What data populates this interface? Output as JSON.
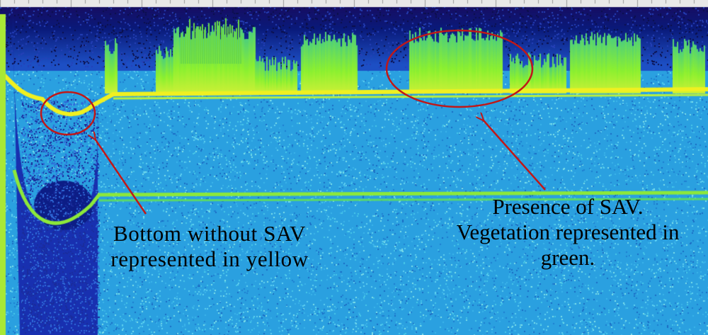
{
  "figure": {
    "type": "echogram",
    "colors": {
      "water_column": "#0a1a7a",
      "background": "#2aa0e0",
      "bottom_without_sav": "#f0f020",
      "vegetation": "#8cf030",
      "annotation_ellipse": "#c01818",
      "annotation_arrow": "#c01818",
      "text": "#000000"
    }
  },
  "annotations": {
    "bottom_without_sav": {
      "line1": "Bottom without SAV",
      "line2": "represented in yellow"
    },
    "presence_of_sav": {
      "line1": "Presence of SAV.",
      "line2": "Vegetation represented in",
      "line3": "green."
    }
  }
}
